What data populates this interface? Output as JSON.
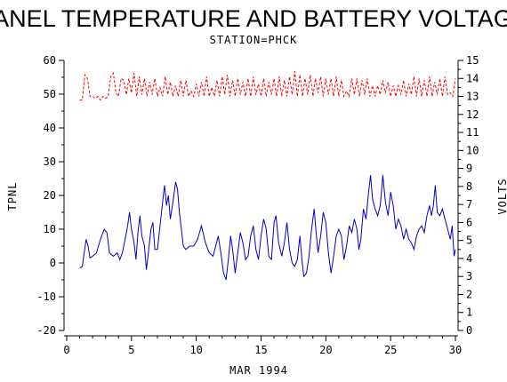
{
  "chart_data": {
    "type": "line",
    "title": "PANEL TEMPERATURE AND BATTERY VOLTAGE",
    "subtitle": "STATION=PHCK",
    "xlabel": "MAR 1994",
    "ylabel_left": "TPNL",
    "ylabel_right": "VOLTS",
    "xlim": [
      0,
      30
    ],
    "ylim_left": [
      -20,
      60
    ],
    "ylim_right": [
      0,
      15
    ],
    "x_ticks": [
      0,
      5,
      10,
      15,
      20,
      25,
      30
    ],
    "y_ticks_left": [
      -20,
      -10,
      0,
      10,
      20,
      30,
      40,
      50,
      60
    ],
    "y_ticks_right": [
      0,
      1,
      2,
      3,
      4,
      5,
      6,
      7,
      8,
      9,
      10,
      11,
      12,
      13,
      14,
      15
    ],
    "grid": false,
    "series": [
      {
        "axis": "left",
        "color": "#0000cc",
        "style": "solid",
        "points": [
          [
            1.0,
            -1.5
          ],
          [
            1.2,
            -1.0
          ],
          [
            1.35,
            3
          ],
          [
            1.5,
            7
          ],
          [
            1.65,
            5
          ],
          [
            1.8,
            1.5
          ],
          [
            2.0,
            2
          ],
          [
            2.3,
            3
          ],
          [
            2.6,
            7
          ],
          [
            2.9,
            10
          ],
          [
            3.1,
            9
          ],
          [
            3.3,
            3
          ],
          [
            3.6,
            2
          ],
          [
            3.9,
            3
          ],
          [
            4.1,
            1
          ],
          [
            4.3,
            3
          ],
          [
            4.5,
            7
          ],
          [
            4.7,
            11
          ],
          [
            4.85,
            15
          ],
          [
            5.0,
            10
          ],
          [
            5.2,
            6
          ],
          [
            5.35,
            1
          ],
          [
            5.5,
            9
          ],
          [
            5.65,
            14
          ],
          [
            5.8,
            8
          ],
          [
            6.0,
            5
          ],
          [
            6.15,
            -2
          ],
          [
            6.3,
            3
          ],
          [
            6.5,
            10
          ],
          [
            6.65,
            12
          ],
          [
            6.8,
            4
          ],
          [
            7.0,
            4
          ],
          [
            7.2,
            11
          ],
          [
            7.4,
            18
          ],
          [
            7.55,
            23
          ],
          [
            7.7,
            17
          ],
          [
            7.85,
            20
          ],
          [
            8.0,
            13
          ],
          [
            8.2,
            18
          ],
          [
            8.4,
            24
          ],
          [
            8.55,
            22
          ],
          [
            8.7,
            15
          ],
          [
            8.85,
            10
          ],
          [
            9.0,
            5
          ],
          [
            9.2,
            4
          ],
          [
            9.5,
            5
          ],
          [
            9.8,
            5
          ],
          [
            10.1,
            7
          ],
          [
            10.4,
            11
          ],
          [
            10.7,
            6
          ],
          [
            11.0,
            3
          ],
          [
            11.3,
            2
          ],
          [
            11.5,
            5
          ],
          [
            11.7,
            8
          ],
          [
            11.9,
            3
          ],
          [
            12.1,
            -3
          ],
          [
            12.3,
            -5
          ],
          [
            12.5,
            2
          ],
          [
            12.65,
            8
          ],
          [
            12.8,
            4
          ],
          [
            13.0,
            -3
          ],
          [
            13.2,
            3
          ],
          [
            13.4,
            9
          ],
          [
            13.6,
            6
          ],
          [
            13.8,
            1
          ],
          [
            14.0,
            2
          ],
          [
            14.2,
            8
          ],
          [
            14.4,
            11
          ],
          [
            14.6,
            4
          ],
          [
            14.8,
            1
          ],
          [
            15.0,
            8
          ],
          [
            15.2,
            13
          ],
          [
            15.4,
            10
          ],
          [
            15.6,
            2
          ],
          [
            15.8,
            1
          ],
          [
            16.0,
            12
          ],
          [
            16.15,
            14
          ],
          [
            16.35,
            6
          ],
          [
            16.6,
            2
          ],
          [
            16.8,
            6
          ],
          [
            17.0,
            12
          ],
          [
            17.2,
            4
          ],
          [
            17.4,
            0
          ],
          [
            17.6,
            -1
          ],
          [
            17.8,
            1
          ],
          [
            18.0,
            8
          ],
          [
            18.15,
            1
          ],
          [
            18.3,
            -4
          ],
          [
            18.5,
            -3
          ],
          [
            18.7,
            2
          ],
          [
            18.9,
            10
          ],
          [
            19.1,
            16
          ],
          [
            19.25,
            9
          ],
          [
            19.4,
            3
          ],
          [
            19.6,
            8
          ],
          [
            19.8,
            15
          ],
          [
            20.0,
            12
          ],
          [
            20.2,
            3
          ],
          [
            20.4,
            -3
          ],
          [
            20.6,
            2
          ],
          [
            20.8,
            8
          ],
          [
            21.0,
            10
          ],
          [
            21.2,
            8
          ],
          [
            21.4,
            1
          ],
          [
            21.6,
            5
          ],
          [
            21.8,
            11
          ],
          [
            22.0,
            9
          ],
          [
            22.2,
            13
          ],
          [
            22.4,
            10
          ],
          [
            22.55,
            4
          ],
          [
            22.7,
            7
          ],
          [
            22.9,
            16
          ],
          [
            23.1,
            13
          ],
          [
            23.3,
            21
          ],
          [
            23.45,
            26
          ],
          [
            23.6,
            19
          ],
          [
            23.8,
            16
          ],
          [
            24.0,
            14
          ],
          [
            24.2,
            17
          ],
          [
            24.4,
            26
          ],
          [
            24.6,
            18
          ],
          [
            24.8,
            14
          ],
          [
            25.0,
            21
          ],
          [
            25.2,
            17
          ],
          [
            25.4,
            10
          ],
          [
            25.6,
            13
          ],
          [
            25.8,
            11
          ],
          [
            26.0,
            7
          ],
          [
            26.2,
            10
          ],
          [
            26.4,
            7
          ],
          [
            26.6,
            6
          ],
          [
            26.8,
            4
          ],
          [
            27.0,
            8
          ],
          [
            27.2,
            10
          ],
          [
            27.4,
            11
          ],
          [
            27.6,
            9
          ],
          [
            27.8,
            14
          ],
          [
            28.0,
            17
          ],
          [
            28.15,
            14
          ],
          [
            28.3,
            17
          ],
          [
            28.45,
            23
          ],
          [
            28.6,
            15
          ],
          [
            28.8,
            14
          ],
          [
            29.0,
            16
          ],
          [
            29.2,
            13
          ],
          [
            29.4,
            10
          ],
          [
            29.6,
            7
          ],
          [
            29.75,
            11
          ],
          [
            29.9,
            2
          ],
          [
            30.0,
            4
          ]
        ]
      },
      {
        "axis": "right",
        "color": "#ff0000",
        "style": "dashed",
        "points": [
          [
            1.0,
            12.8
          ],
          [
            1.2,
            12.8
          ],
          [
            1.4,
            14.2
          ],
          [
            1.6,
            14.0
          ],
          [
            1.8,
            13.0
          ],
          [
            2.0,
            13.0
          ],
          [
            2.2,
            12.9
          ],
          [
            2.4,
            13.0
          ],
          [
            2.6,
            12.8
          ],
          [
            2.8,
            13.0
          ],
          [
            3.0,
            12.9
          ],
          [
            3.2,
            13.0
          ],
          [
            3.4,
            14.1
          ],
          [
            3.6,
            14.3
          ],
          [
            3.8,
            13.2
          ],
          [
            4.0,
            13.0
          ],
          [
            4.2,
            14.0
          ],
          [
            4.4,
            13.9
          ],
          [
            4.6,
            13.1
          ],
          [
            4.8,
            14.0
          ],
          [
            5.0,
            13.2
          ],
          [
            5.2,
            14.3
          ],
          [
            5.4,
            13.0
          ],
          [
            5.6,
            14.1
          ],
          [
            5.8,
            13.1
          ],
          [
            6.0,
            14.0
          ],
          [
            6.2,
            13.0
          ],
          [
            6.4,
            13.8
          ],
          [
            6.6,
            13.1
          ],
          [
            6.8,
            14.0
          ],
          [
            7.0,
            13.0
          ],
          [
            7.2,
            13.5
          ],
          [
            7.4,
            13.0
          ],
          [
            7.6,
            14.1
          ],
          [
            7.8,
            13.1
          ],
          [
            8.0,
            13.8
          ],
          [
            8.2,
            13.0
          ],
          [
            8.4,
            13.6
          ],
          [
            8.6,
            13.0
          ],
          [
            8.8,
            13.9
          ],
          [
            9.0,
            13.0
          ],
          [
            9.2,
            13.9
          ],
          [
            9.4,
            13.0
          ],
          [
            9.6,
            13.3
          ],
          [
            9.8,
            13.0
          ],
          [
            10.0,
            13.7
          ],
          [
            10.2,
            13.0
          ],
          [
            10.4,
            13.8
          ],
          [
            10.6,
            13.0
          ],
          [
            10.8,
            14.1
          ],
          [
            11.0,
            13.0
          ],
          [
            11.2,
            13.5
          ],
          [
            11.4,
            13.0
          ],
          [
            11.6,
            13.9
          ],
          [
            11.8,
            13.0
          ],
          [
            12.0,
            14.1
          ],
          [
            12.2,
            13.1
          ],
          [
            12.4,
            14.2
          ],
          [
            12.6,
            13.0
          ],
          [
            12.8,
            13.9
          ],
          [
            13.0,
            13.0
          ],
          [
            13.2,
            14.0
          ],
          [
            13.4,
            13.1
          ],
          [
            13.6,
            13.8
          ],
          [
            13.8,
            13.0
          ],
          [
            14.0,
            14.0
          ],
          [
            14.2,
            13.0
          ],
          [
            14.4,
            14.1
          ],
          [
            14.6,
            13.1
          ],
          [
            14.8,
            13.7
          ],
          [
            15.0,
            13.0
          ],
          [
            15.2,
            14.0
          ],
          [
            15.4,
            13.0
          ],
          [
            15.6,
            13.8
          ],
          [
            15.8,
            13.1
          ],
          [
            16.0,
            14.0
          ],
          [
            16.2,
            13.0
          ],
          [
            16.4,
            14.1
          ],
          [
            16.6,
            13.0
          ],
          [
            16.8,
            13.9
          ],
          [
            17.0,
            13.0
          ],
          [
            17.2,
            14.1
          ],
          [
            17.4,
            13.1
          ],
          [
            17.6,
            14.4
          ],
          [
            17.8,
            13.0
          ],
          [
            18.0,
            14.2
          ],
          [
            18.2,
            13.0
          ],
          [
            18.4,
            14.0
          ],
          [
            18.6,
            13.1
          ],
          [
            18.8,
            14.2
          ],
          [
            19.0,
            13.0
          ],
          [
            19.2,
            14.0
          ],
          [
            19.4,
            13.2
          ],
          [
            19.6,
            14.1
          ],
          [
            19.8,
            13.0
          ],
          [
            20.0,
            14.0
          ],
          [
            20.2,
            13.1
          ],
          [
            20.4,
            14.0
          ],
          [
            20.6,
            13.0
          ],
          [
            20.8,
            14.1
          ],
          [
            21.0,
            13.0
          ],
          [
            21.2,
            13.9
          ],
          [
            21.4,
            13.0
          ],
          [
            21.6,
            13.3
          ],
          [
            21.8,
            13.0
          ],
          [
            22.0,
            14.0
          ],
          [
            22.2,
            13.1
          ],
          [
            22.4,
            14.0
          ],
          [
            22.6,
            13.0
          ],
          [
            22.8,
            13.9
          ],
          [
            23.0,
            13.1
          ],
          [
            23.2,
            14.0
          ],
          [
            23.4,
            13.0
          ],
          [
            23.6,
            13.6
          ],
          [
            23.8,
            13.0
          ],
          [
            24.0,
            13.6
          ],
          [
            24.2,
            13.1
          ],
          [
            24.4,
            13.9
          ],
          [
            24.6,
            13.2
          ],
          [
            24.8,
            13.8
          ],
          [
            25.0,
            13.0
          ],
          [
            25.2,
            13.6
          ],
          [
            25.4,
            13.0
          ],
          [
            25.6,
            13.6
          ],
          [
            25.8,
            13.1
          ],
          [
            26.0,
            13.9
          ],
          [
            26.2,
            13.0
          ],
          [
            26.4,
            13.7
          ],
          [
            26.6,
            13.1
          ],
          [
            26.8,
            14.1
          ],
          [
            27.0,
            13.0
          ],
          [
            27.2,
            14.0
          ],
          [
            27.4,
            13.0
          ],
          [
            27.6,
            13.9
          ],
          [
            27.8,
            13.0
          ],
          [
            28.0,
            14.1
          ],
          [
            28.2,
            13.0
          ],
          [
            28.4,
            13.8
          ],
          [
            28.6,
            13.1
          ],
          [
            28.8,
            14.0
          ],
          [
            29.0,
            13.0
          ],
          [
            29.2,
            14.1
          ],
          [
            29.4,
            13.1
          ],
          [
            29.6,
            13.2
          ],
          [
            29.8,
            13.0
          ],
          [
            30.0,
            14.0
          ]
        ]
      }
    ]
  }
}
